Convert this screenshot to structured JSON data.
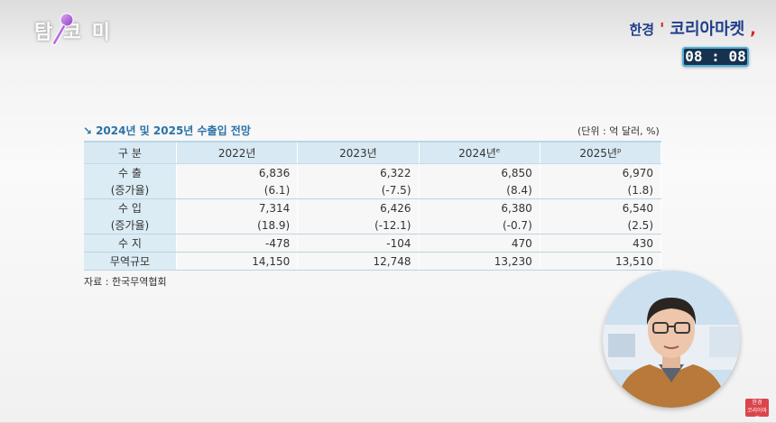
{
  "logo_left": {
    "text": "탐 코 미",
    "icon": "microphone-icon"
  },
  "brand": {
    "part_a": "한경",
    "part_quote": "'",
    "part_b": "코리아마켓",
    "part_end": ","
  },
  "clock": "08 : 08",
  "table": {
    "title": "2024년 및 2025년 수출입 전망",
    "unit": "(단위 : 억 달러, %)",
    "headers": [
      "구 분",
      "2022년",
      "2023년",
      "2024년",
      "2025년"
    ],
    "header_sups": [
      "",
      "",
      "",
      "e",
      "p"
    ],
    "rows": [
      [
        "수 출",
        "6,836",
        "6,322",
        "6,850",
        "6,970"
      ],
      [
        "(증가율)",
        "(6.1)",
        "(-7.5)",
        "(8.4)",
        "(1.8)"
      ],
      [
        "수 입",
        "7,314",
        "6,426",
        "6,380",
        "6,540"
      ],
      [
        "(증가율)",
        "(18.9)",
        "(-12.1)",
        "(-0.7)",
        "(2.5)"
      ],
      [
        "수 지",
        "-478",
        "-104",
        "470",
        "430"
      ],
      [
        "무역규모",
        "14,150",
        "12,748",
        "13,230",
        "13,510"
      ]
    ],
    "source": "자료 : 한국무역협회"
  },
  "pip": {
    "icon": "presenter-avatar-icon"
  },
  "corner_logo": {
    "line1": "한경",
    "line2": "코리아마켓"
  },
  "colors": {
    "header_bg": "#d8e9f3",
    "title_blue": "#2a72a8",
    "brand_red": "#d8262e",
    "brand_blue": "#1f3d8a",
    "clock_bg": "#17324f"
  }
}
